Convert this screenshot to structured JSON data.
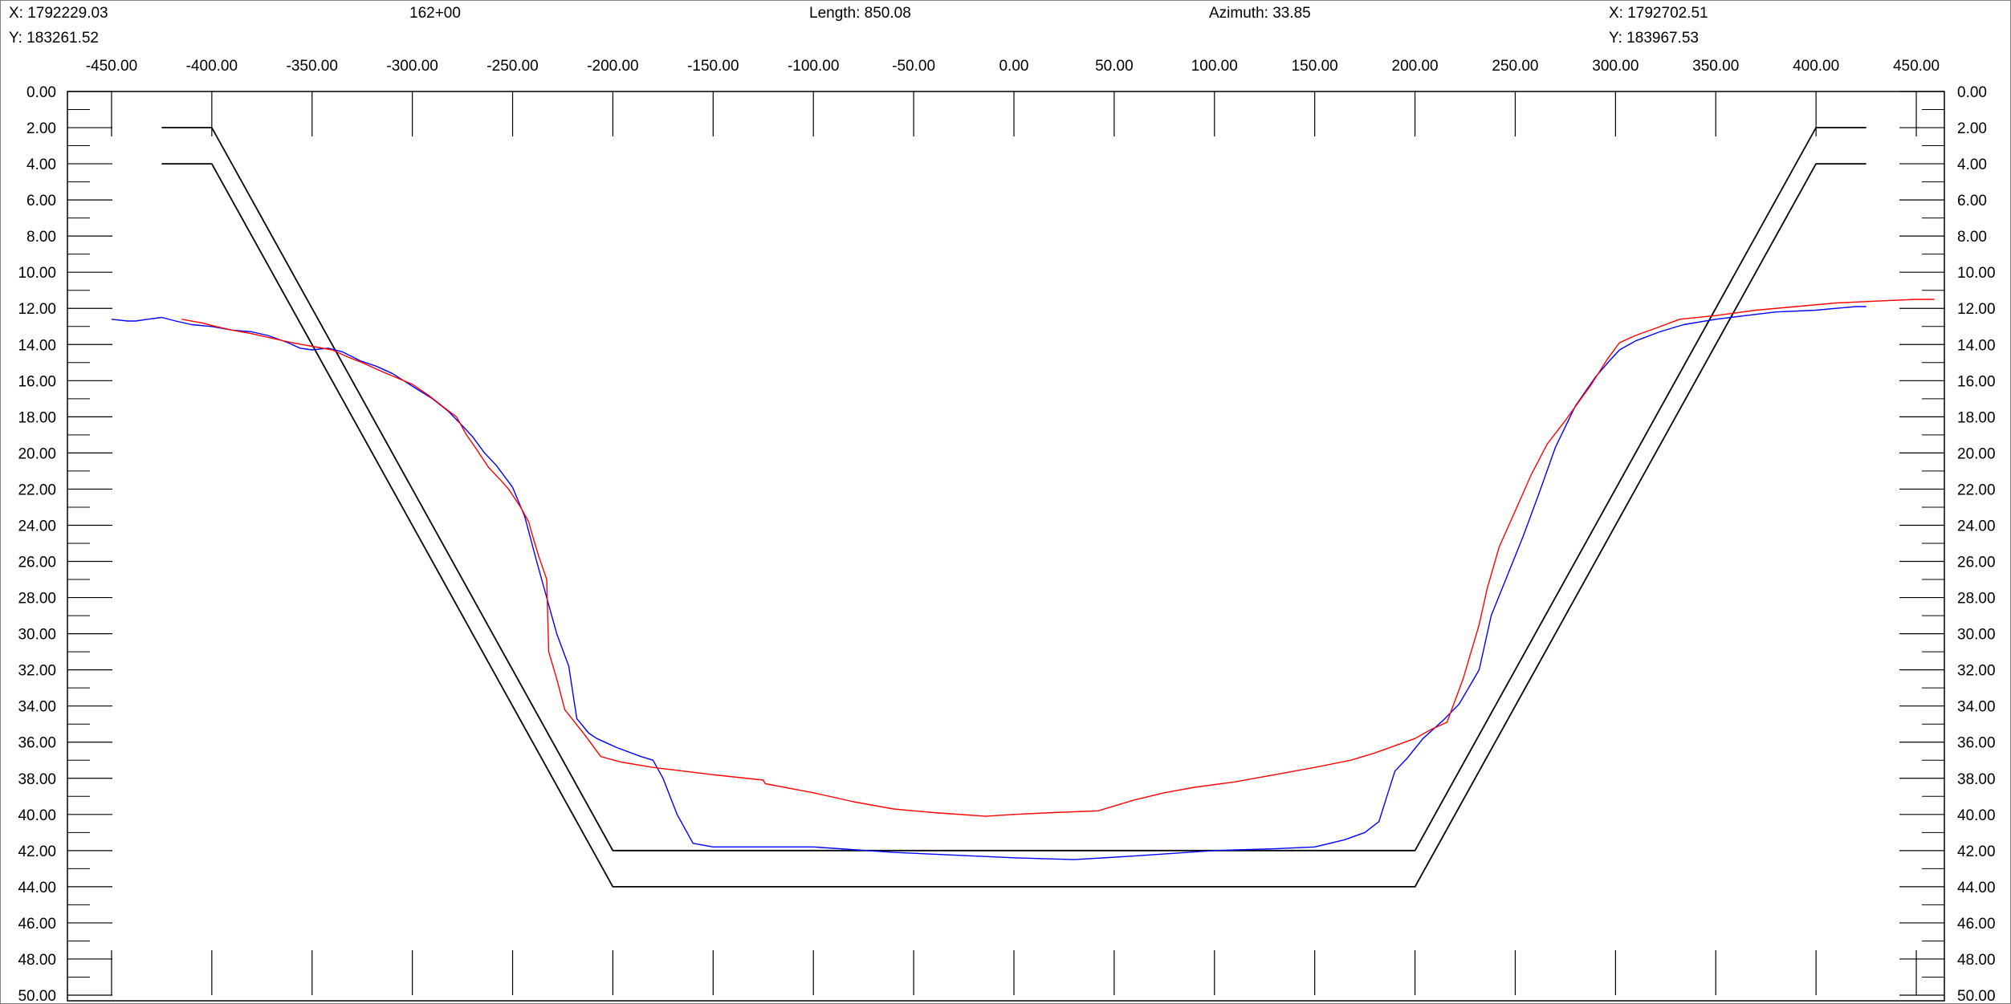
{
  "header": {
    "start_x": "X: 1792229.03",
    "start_y": "Y: 183261.52",
    "station": "162+00",
    "length": "Length: 850.08",
    "azimuth": "Azimuth: 33.85",
    "end_x": "X: 1792702.51",
    "end_y": "Y: 183967.53"
  },
  "chart_data": {
    "type": "line",
    "title": "",
    "xlabel": "",
    "ylabel": "",
    "xlim": [
      -472,
      464
    ],
    "ylim": [
      0,
      50
    ],
    "y_inverted": true,
    "grid": false,
    "x_tick_labels": [
      "-450.00",
      "-400.00",
      "-350.00",
      "-300.00",
      "-250.00",
      "-200.00",
      "-150.00",
      "-100.00",
      "-50.00",
      "0.00",
      "50.00",
      "100.00",
      "150.00",
      "200.00",
      "250.00",
      "300.00",
      "350.00",
      "400.00",
      "450.00"
    ],
    "x_tick_values": [
      -450,
      -400,
      -350,
      -300,
      -250,
      -200,
      -150,
      -100,
      -50,
      0,
      50,
      100,
      150,
      200,
      250,
      300,
      350,
      400,
      450
    ],
    "y_tick_labels": [
      "0.00",
      "2.00",
      "4.00",
      "6.00",
      "8.00",
      "10.00",
      "12.00",
      "14.00",
      "16.00",
      "18.00",
      "20.00",
      "22.00",
      "24.00",
      "26.00",
      "28.00",
      "30.00",
      "32.00",
      "34.00",
      "36.00",
      "38.00",
      "40.00",
      "42.00",
      "44.00",
      "46.00",
      "48.00",
      "50.00"
    ],
    "y_tick_values": [
      0,
      2,
      4,
      6,
      8,
      10,
      12,
      14,
      16,
      18,
      20,
      22,
      24,
      26,
      28,
      30,
      32,
      34,
      36,
      38,
      40,
      42,
      44,
      46,
      48,
      50
    ],
    "series": [
      {
        "color": "#000000",
        "points": [
          [
            -425,
            2
          ],
          [
            -400,
            2
          ],
          [
            -200,
            42
          ],
          [
            200,
            42
          ],
          [
            400,
            2
          ],
          [
            425,
            2
          ]
        ]
      },
      {
        "color": "#000000",
        "points": [
          [
            -425,
            4
          ],
          [
            -400,
            4
          ],
          [
            -200,
            44
          ],
          [
            200,
            44
          ],
          [
            400,
            4
          ],
          [
            425,
            4
          ]
        ]
      },
      {
        "color": "#0000ff",
        "points": [
          [
            -450,
            12.6
          ],
          [
            -442,
            12.7
          ],
          [
            -438,
            12.7
          ],
          [
            -432,
            12.6
          ],
          [
            -425,
            12.5
          ],
          [
            -418,
            12.7
          ],
          [
            -410,
            12.9
          ],
          [
            -400,
            13
          ],
          [
            -390,
            13.2
          ],
          [
            -380,
            13.3
          ],
          [
            -372,
            13.5
          ],
          [
            -362,
            13.9
          ],
          [
            -356,
            14.2
          ],
          [
            -350,
            14.3
          ],
          [
            -342,
            14.2
          ],
          [
            -335,
            14.4
          ],
          [
            -326,
            14.9
          ],
          [
            -318,
            15.2
          ],
          [
            -310,
            15.6
          ],
          [
            -300,
            16.3
          ],
          [
            -290,
            17
          ],
          [
            -282,
            17.7
          ],
          [
            -275,
            18.5
          ],
          [
            -270,
            19.1
          ],
          [
            -264,
            20
          ],
          [
            -258,
            20.7
          ],
          [
            -250,
            21.9
          ],
          [
            -244,
            23.5
          ],
          [
            -238,
            26
          ],
          [
            -233,
            28
          ],
          [
            -228,
            30
          ],
          [
            -222,
            31.8
          ],
          [
            -218,
            34.7
          ],
          [
            -212,
            35.5
          ],
          [
            -208,
            35.8
          ],
          [
            -198,
            36.3
          ],
          [
            -186,
            36.8
          ],
          [
            -180,
            37
          ],
          [
            -175,
            38
          ],
          [
            -168,
            40
          ],
          [
            -160,
            41.6
          ],
          [
            -150,
            41.8
          ],
          [
            -100,
            41.8
          ],
          [
            -60,
            42.1
          ],
          [
            0,
            42.4
          ],
          [
            30,
            42.5
          ],
          [
            60,
            42.3
          ],
          [
            100,
            42
          ],
          [
            130,
            41.9
          ],
          [
            150,
            41.8
          ],
          [
            165,
            41.4
          ],
          [
            175,
            41
          ],
          [
            182,
            40.4
          ],
          [
            190,
            37.6
          ],
          [
            196,
            36.9
          ],
          [
            204,
            35.8
          ],
          [
            214,
            34.8
          ],
          [
            222,
            33.9
          ],
          [
            232,
            32
          ],
          [
            238,
            29
          ],
          [
            246,
            26.8
          ],
          [
            254,
            24.6
          ],
          [
            262,
            22.2
          ],
          [
            270,
            19.7
          ],
          [
            280,
            17.4
          ],
          [
            290,
            15.8
          ],
          [
            297,
            14.9
          ],
          [
            302,
            14.3
          ],
          [
            310,
            13.8
          ],
          [
            322,
            13.3
          ],
          [
            334,
            12.9
          ],
          [
            350,
            12.6
          ],
          [
            365,
            12.4
          ],
          [
            380,
            12.2
          ],
          [
            400,
            12.1
          ],
          [
            410,
            12
          ],
          [
            420,
            11.9
          ],
          [
            425,
            11.9
          ]
        ]
      },
      {
        "color": "#ff0000",
        "points": [
          [
            -415,
            12.6
          ],
          [
            -405,
            12.8
          ],
          [
            -398,
            13
          ],
          [
            -390,
            13.2
          ],
          [
            -380,
            13.4
          ],
          [
            -372,
            13.6
          ],
          [
            -360,
            13.9
          ],
          [
            -350,
            14.1
          ],
          [
            -340,
            14.3
          ],
          [
            -332,
            14.7
          ],
          [
            -325,
            15
          ],
          [
            -315,
            15.5
          ],
          [
            -300,
            16.2
          ],
          [
            -292,
            16.8
          ],
          [
            -284,
            17.5
          ],
          [
            -278,
            18
          ],
          [
            -273,
            19
          ],
          [
            -268,
            19.8
          ],
          [
            -262,
            20.8
          ],
          [
            -256,
            21.5
          ],
          [
            -252,
            22
          ],
          [
            -246,
            23
          ],
          [
            -242,
            23.8
          ],
          [
            -240,
            24.6
          ],
          [
            -237,
            25.7
          ],
          [
            -233,
            27
          ],
          [
            -232,
            31
          ],
          [
            -228,
            32.5
          ],
          [
            -224,
            34.2
          ],
          [
            -214,
            35.6
          ],
          [
            -206,
            36.8
          ],
          [
            -196,
            37.1
          ],
          [
            -180,
            37.4
          ],
          [
            -150,
            37.8
          ],
          [
            -125,
            38.1
          ],
          [
            -124,
            38.3
          ],
          [
            -100,
            38.8
          ],
          [
            -80,
            39.3
          ],
          [
            -60,
            39.7
          ],
          [
            -40,
            39.9
          ],
          [
            -14,
            40.1
          ],
          [
            0,
            40
          ],
          [
            20,
            39.9
          ],
          [
            42,
            39.8
          ],
          [
            60,
            39.2
          ],
          [
            75,
            38.8
          ],
          [
            90,
            38.5
          ],
          [
            110,
            38.2
          ],
          [
            130,
            37.8
          ],
          [
            150,
            37.4
          ],
          [
            168,
            37
          ],
          [
            180,
            36.6
          ],
          [
            190,
            36.2
          ],
          [
            200,
            35.8
          ],
          [
            208,
            35.3
          ],
          [
            216,
            34.9
          ],
          [
            224,
            32.5
          ],
          [
            232,
            29.5
          ],
          [
            236,
            27.5
          ],
          [
            242,
            25.2
          ],
          [
            250,
            23.2
          ],
          [
            258,
            21.2
          ],
          [
            266,
            19.5
          ],
          [
            275,
            18.2
          ],
          [
            288,
            16.2
          ],
          [
            296,
            14.8
          ],
          [
            302,
            13.9
          ],
          [
            310,
            13.5
          ],
          [
            320,
            13.1
          ],
          [
            332,
            12.6
          ],
          [
            350,
            12.4
          ],
          [
            370,
            12.1
          ],
          [
            390,
            11.9
          ],
          [
            410,
            11.7
          ],
          [
            430,
            11.6
          ],
          [
            450,
            11.5
          ],
          [
            459,
            11.5
          ]
        ]
      }
    ]
  }
}
